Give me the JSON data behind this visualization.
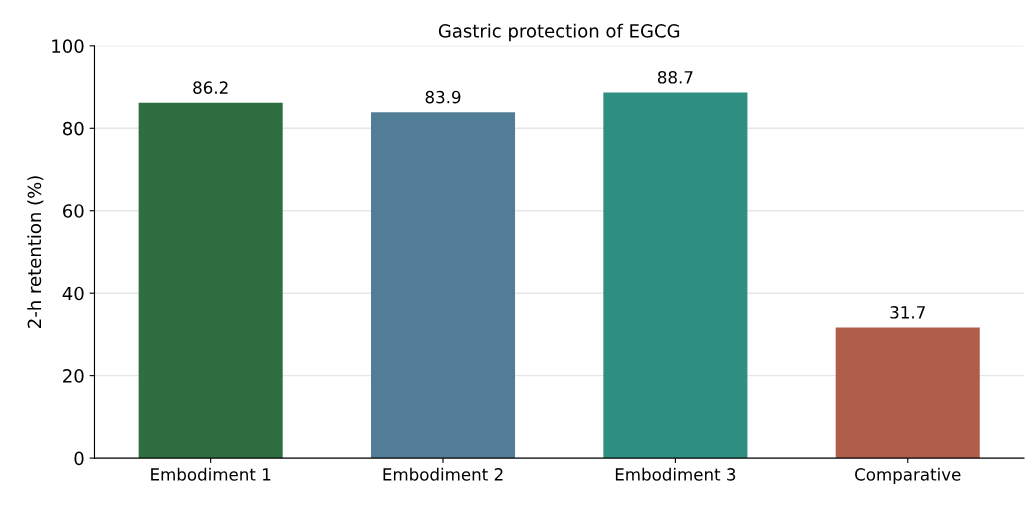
{
  "chart_data": {
    "type": "bar",
    "title": "Gastric protection of EGCG",
    "ylabel": "2-h retention (%)",
    "categories": [
      "Embodiment 1",
      "Embodiment 2",
      "Embodiment 3",
      "Comparative"
    ],
    "values": [
      86.2,
      83.9,
      88.7,
      31.7
    ],
    "colors": [
      "#2e6e40",
      "#527d96",
      "#2e8f80",
      "#b05e4c"
    ],
    "ylim": [
      0,
      100
    ],
    "yticks": [
      0,
      20,
      40,
      60,
      80,
      100
    ],
    "grid": "y",
    "data_labels": true
  }
}
